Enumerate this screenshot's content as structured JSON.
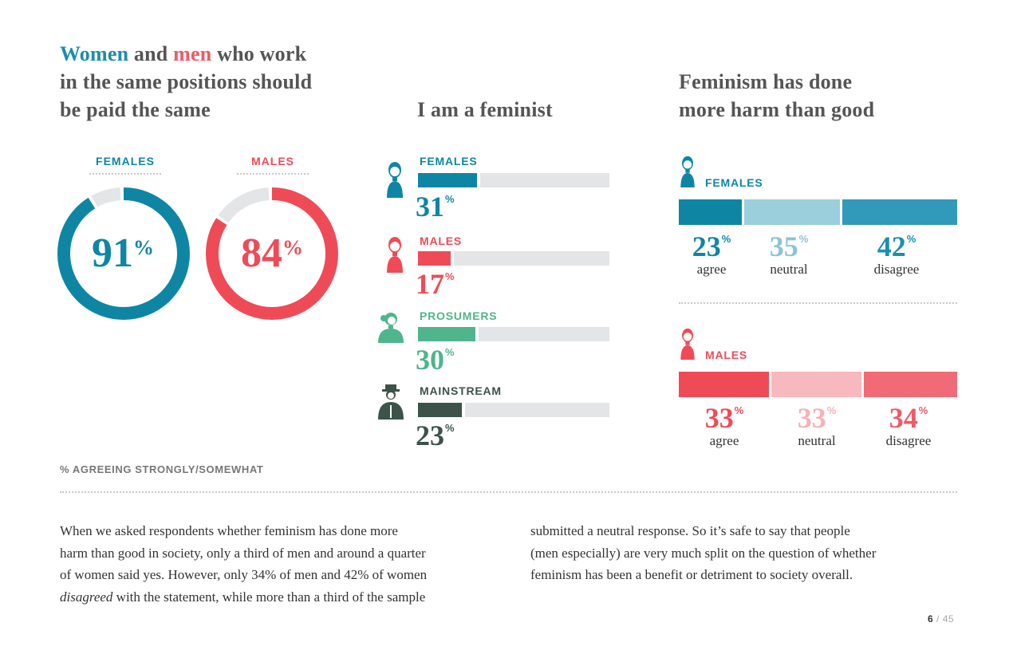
{
  "colors": {
    "female": "#0e86a3",
    "male": "#ef4b57",
    "prosumer": "#4eb58d",
    "mainstream": "#3b5348",
    "track": "#e4e5e7"
  },
  "panel1": {
    "title_w1": "Women",
    "title_w2": " and ",
    "title_w3": "men",
    "title_line1_rest": " who work",
    "title_line2": "in the same positions should",
    "title_line3": "be paid the same"
  },
  "panel2": {
    "title": "I am a feminist"
  },
  "panel3": {
    "title_line1": "Feminism has done",
    "title_line2": "more harm than good"
  },
  "footer_note": "% AGREEING STRONGLY/SOMEWHAT",
  "body_left": {
    "l1": "When we asked respondents whether feminism has done more",
    "l2": "harm than good in society, only a third of men and around a quarter",
    "l3": "of women said yes. However, only 34% of men and 42% of women",
    "l4_em": "disagreed",
    "l4_rest": " with the statement, while more than a third of the sample"
  },
  "body_right": {
    "l1": "submitted a neutral response. So it’s safe to say that people",
    "l2": "(men especially) are very much split on the question of whether",
    "l3": "feminism has been a benefit or detriment to society overall."
  },
  "page": {
    "current": "6",
    "total": " / 45"
  },
  "chart_data": [
    {
      "type": "pie",
      "title": "Women and men who work in the same positions should be paid the same",
      "categories": [
        "FEMALES",
        "MALES"
      ],
      "values": [
        91,
        84
      ],
      "labels": [
        "91",
        "84"
      ],
      "unit": "%"
    },
    {
      "type": "bar",
      "title": "I am a feminist",
      "categories": [
        "FEMALES",
        "MALES",
        "PROSUMERS",
        "MAINSTREAM"
      ],
      "values": [
        31,
        17,
        30,
        23
      ],
      "labels": [
        "31",
        "17",
        "30",
        "23"
      ],
      "unit": "%"
    },
    {
      "type": "bar",
      "title": "Feminism has done more harm than good",
      "categories": [
        "agree",
        "neutral",
        "disagree"
      ],
      "series": [
        {
          "name": "FEMALES",
          "values": [
            23,
            35,
            42
          ],
          "labels": [
            "23",
            "35",
            "42"
          ]
        },
        {
          "name": "MALES",
          "values": [
            33,
            33,
            34
          ],
          "labels": [
            "33",
            "33",
            "34"
          ]
        }
      ],
      "unit": "%"
    }
  ]
}
